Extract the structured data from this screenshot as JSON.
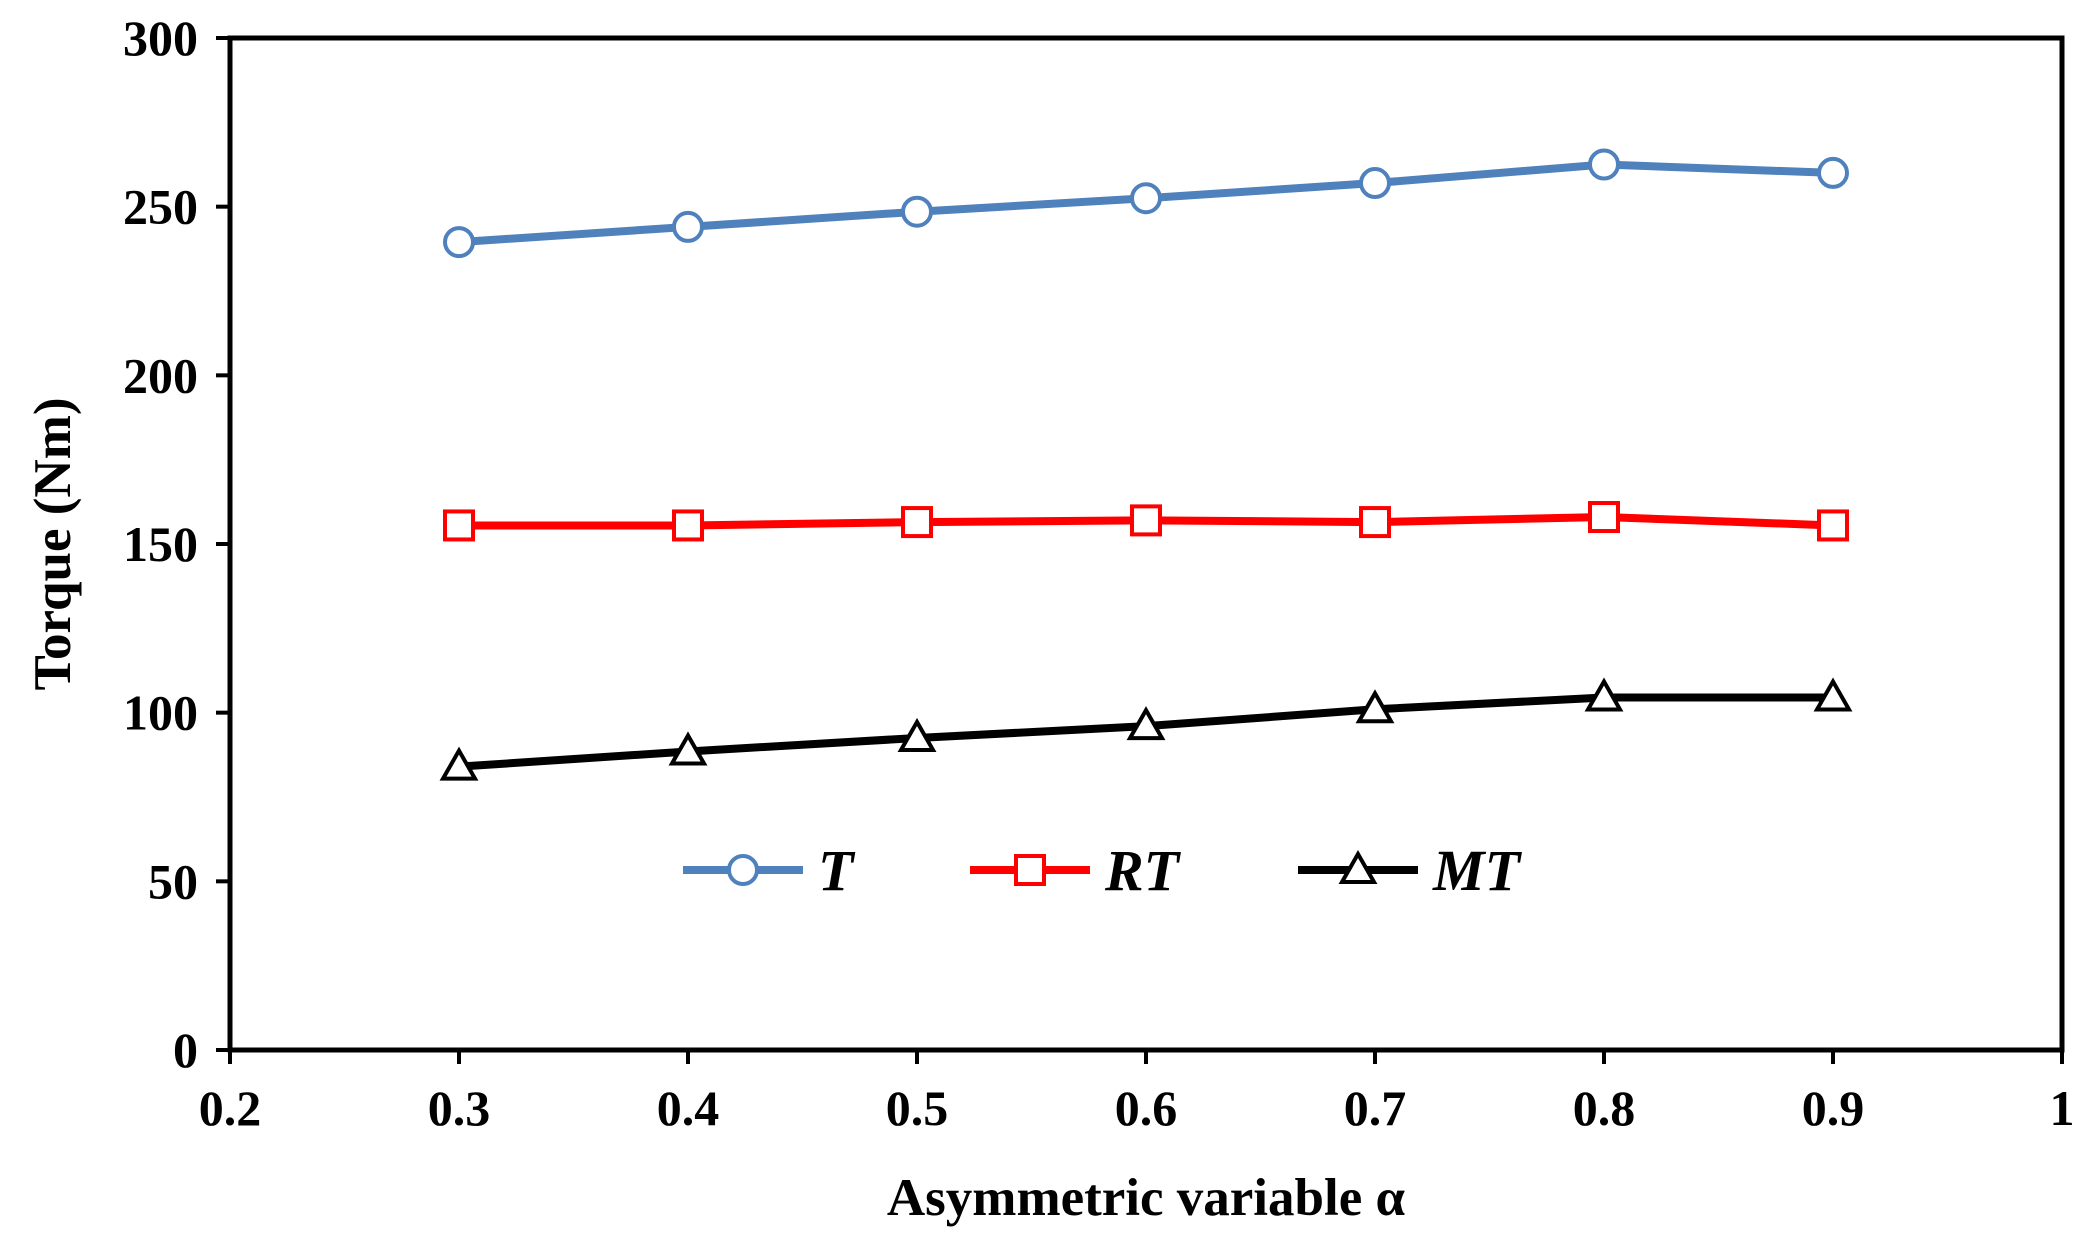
{
  "chart_data": {
    "type": "line",
    "title": "",
    "xlabel": "Asymmetric variable α",
    "ylabel": "Torque (Nm)",
    "xlim": [
      0.2,
      1
    ],
    "ylim": [
      0,
      300
    ],
    "x_ticks": [
      0.2,
      0.3,
      0.4,
      0.5,
      0.6,
      0.7,
      0.8,
      0.9,
      1
    ],
    "x_tick_labels": [
      "0.2",
      "0.3",
      "0.4",
      "0.5",
      "0.6",
      "0.7",
      "0.8",
      "0.9",
      "1"
    ],
    "y_ticks": [
      0,
      50,
      100,
      150,
      200,
      250,
      300
    ],
    "y_tick_labels": [
      "0",
      "50",
      "100",
      "150",
      "200",
      "250",
      "300"
    ],
    "grid": false,
    "legend_placement": "lower-center",
    "x": [
      0.3,
      0.4,
      0.5,
      0.6,
      0.7,
      0.8,
      0.9
    ],
    "series": [
      {
        "name": "T",
        "color": "#4F81BD",
        "marker": "circle",
        "values": [
          239.5,
          244,
          248.5,
          252.5,
          257,
          262.5,
          260
        ]
      },
      {
        "name": "RT",
        "color": "#FF0000",
        "marker": "square",
        "values": [
          155.5,
          155.5,
          156.5,
          157,
          156.5,
          158,
          155.5
        ]
      },
      {
        "name": "MT",
        "color": "#000000",
        "marker": "triangle",
        "values": [
          84,
          88.5,
          92.5,
          96,
          101,
          104.5,
          104.5
        ]
      }
    ]
  }
}
